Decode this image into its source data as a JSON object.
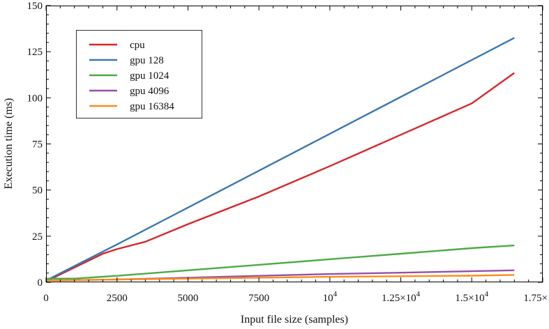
{
  "chart_data": {
    "type": "line",
    "title": "",
    "xlabel": "Input file size (samples)",
    "ylabel": "Execution time (ms)",
    "xlim": [
      0,
      17500
    ],
    "ylim": [
      0,
      150
    ],
    "grid": false,
    "legend_position": "top-left",
    "x_ticks": [
      {
        "value": 0,
        "label": "0"
      },
      {
        "value": 2500,
        "label": "2500"
      },
      {
        "value": 5000,
        "label": "5000"
      },
      {
        "value": 7500,
        "label": "7500"
      },
      {
        "value": 10000,
        "label": "10",
        "sup": "4"
      },
      {
        "value": 12500,
        "label": "1.25×10",
        "sup": "4"
      },
      {
        "value": 15000,
        "label": "1.5×10",
        "sup": "4"
      },
      {
        "value": 17500,
        "label": "1.75×10",
        "sup": "4"
      }
    ],
    "y_ticks": [
      {
        "value": 0,
        "label": "0"
      },
      {
        "value": 25,
        "label": "25"
      },
      {
        "value": 50,
        "label": "50"
      },
      {
        "value": 75,
        "label": "75"
      },
      {
        "value": 100,
        "label": "100"
      },
      {
        "value": 125,
        "label": "125"
      },
      {
        "value": 150,
        "label": "150"
      }
    ],
    "series": [
      {
        "name": "cpu",
        "color": "#d62728",
        "x": [
          0,
          1000,
          2000,
          2500,
          3500,
          5000,
          7500,
          10000,
          12500,
          15000,
          16500
        ],
        "y": [
          0.5,
          8,
          15.5,
          18,
          22,
          31.5,
          46.5,
          63,
          80,
          97,
          113.5
        ]
      },
      {
        "name": "gpu 128",
        "color": "#3a78b0",
        "x": [
          0,
          2500,
          5000,
          7500,
          10000,
          12500,
          15000,
          16500
        ],
        "y": [
          1,
          20.5,
          40.5,
          60.5,
          80.5,
          100.5,
          120.5,
          132.5
        ]
      },
      {
        "name": "gpu 1024",
        "color": "#4cab45",
        "x": [
          0,
          1000,
          2500,
          5000,
          7500,
          10000,
          12500,
          15000,
          16500
        ],
        "y": [
          2,
          2,
          3.5,
          6.5,
          9.5,
          12.5,
          15.5,
          18.5,
          20
        ]
      },
      {
        "name": "gpu 4096",
        "color": "#9650a8",
        "x": [
          0,
          2500,
          5000,
          7500,
          10000,
          12500,
          15000,
          16500
        ],
        "y": [
          1,
          1.5,
          2.5,
          3.5,
          4.5,
          5.2,
          6,
          6.5
        ]
      },
      {
        "name": "gpu 16384",
        "color": "#ff8c1a",
        "x": [
          0,
          2500,
          5000,
          7500,
          10000,
          12500,
          15000,
          16500
        ],
        "y": [
          1,
          1.5,
          2,
          2.5,
          3,
          3.3,
          3.6,
          4
        ]
      }
    ]
  }
}
